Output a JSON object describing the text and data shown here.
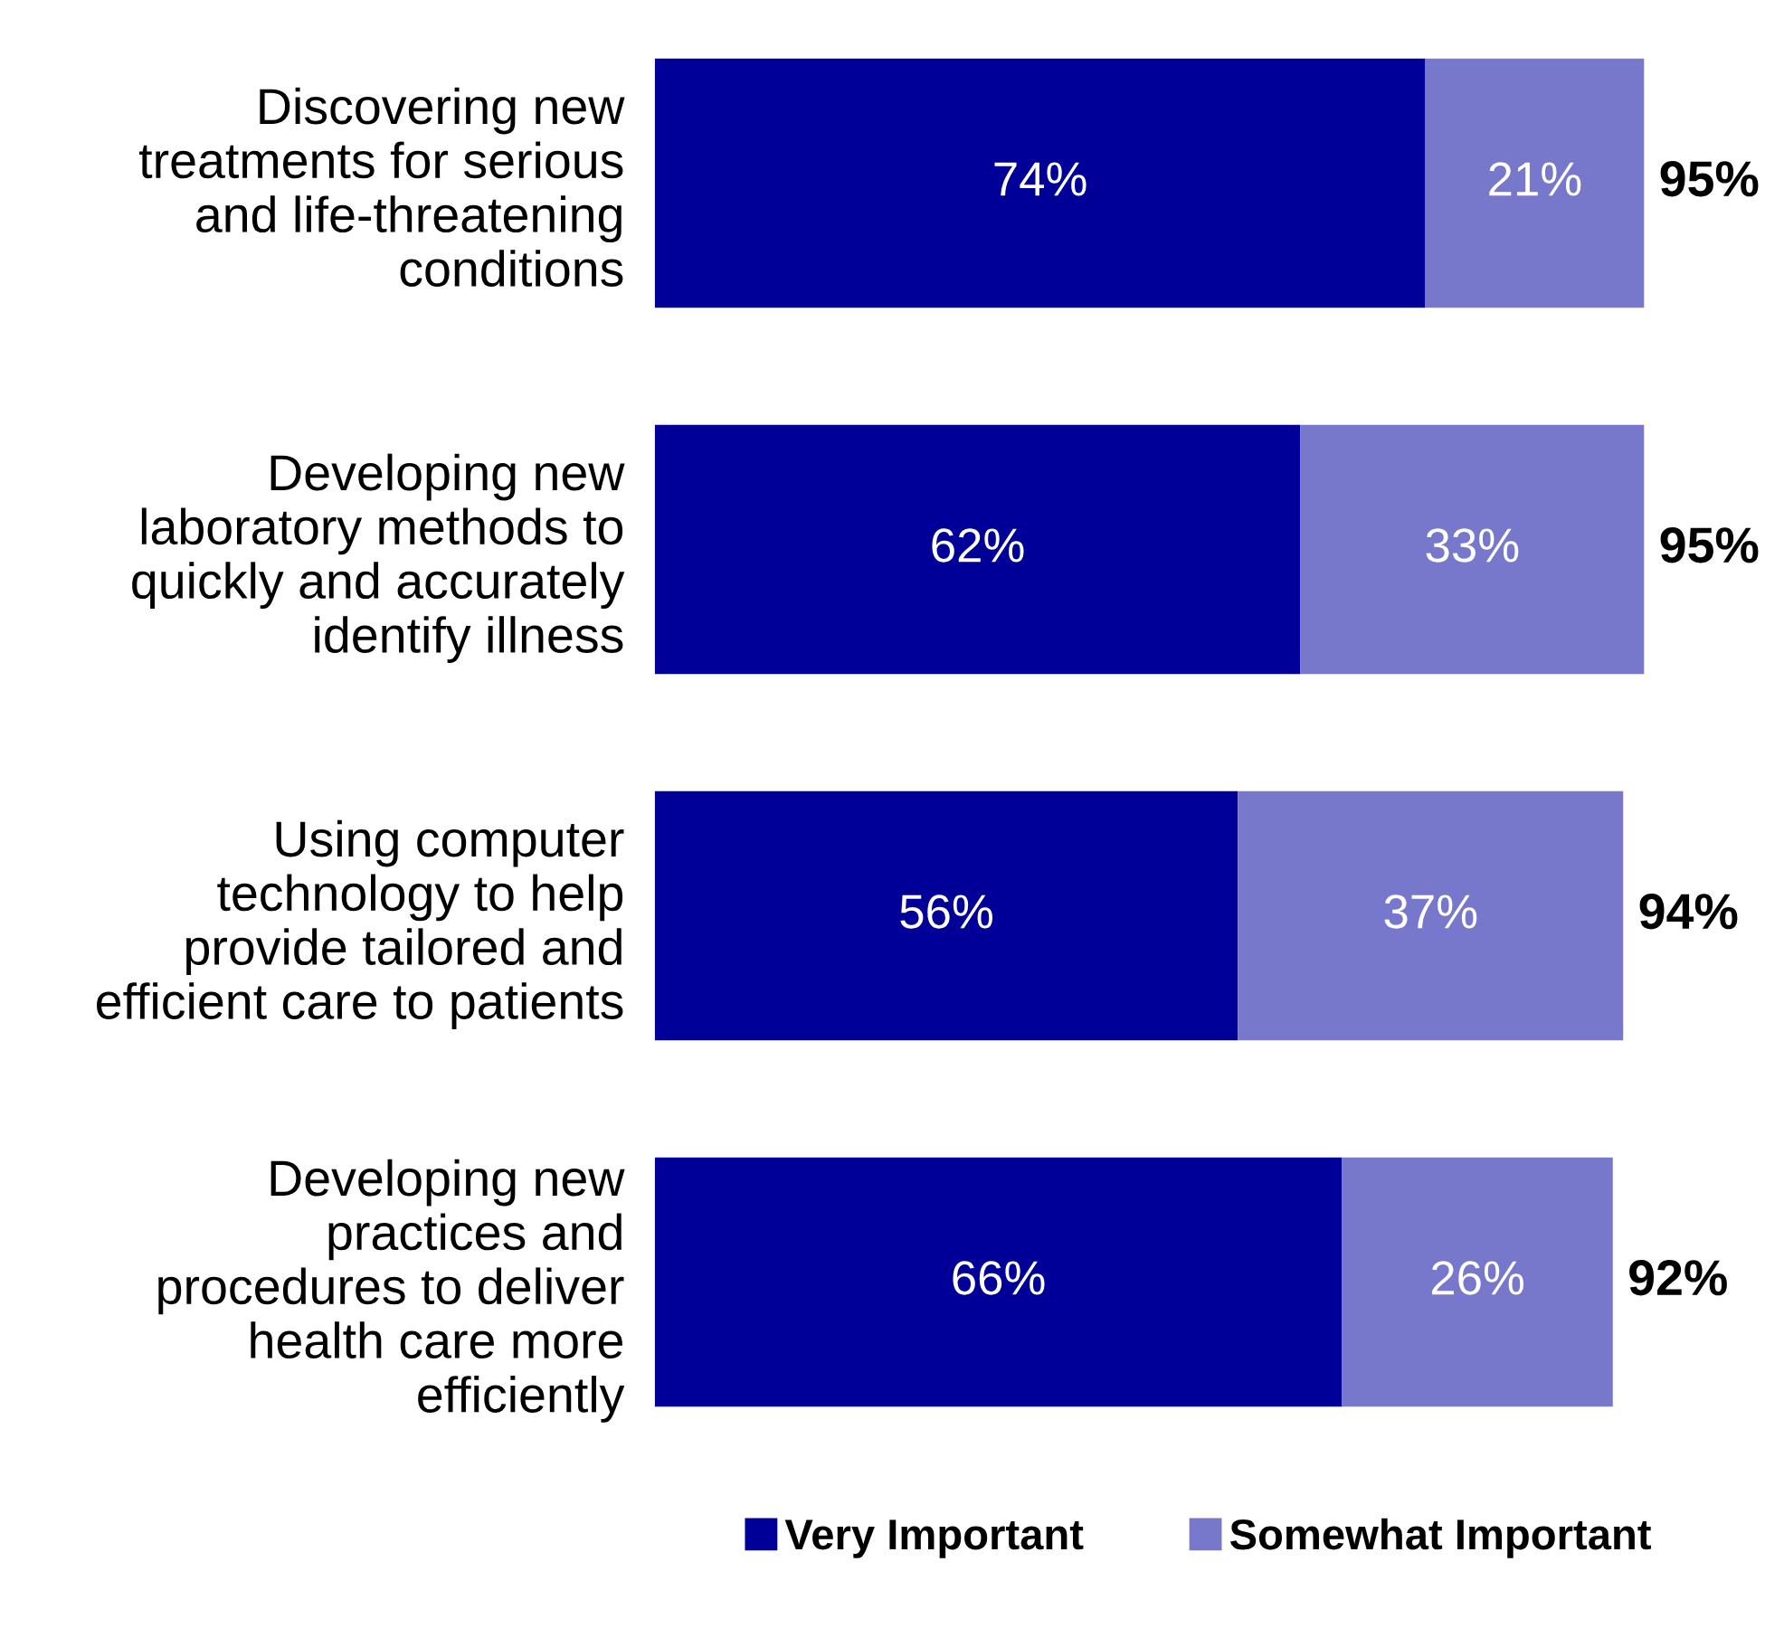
{
  "chart_data": {
    "type": "bar",
    "orientation": "horizontal",
    "stacked": true,
    "categories": [
      "Discovering new\ntreatments for serious\nand life-threatening\nconditions",
      "Developing new\nlaboratory methods to\nquickly and accurately\nidentify illness",
      "Using computer\ntechnology to help\nprovide tailored and\nefficient care to patients",
      "Developing new\npractices and\nprocedures to deliver\nhealth care more\nefficiently"
    ],
    "series": [
      {
        "name": "Very Important",
        "color": "#000099",
        "values": [
          74,
          62,
          56,
          66
        ],
        "value_labels": [
          "74%",
          "62%",
          "56%",
          "66%"
        ]
      },
      {
        "name": "Somewhat Important",
        "color": "#7777cc",
        "values": [
          21,
          33,
          37,
          26
        ],
        "value_labels": [
          "21%",
          "33%",
          "37%",
          "26%"
        ]
      }
    ],
    "totals": [
      "95%",
      "95%",
      "94%",
      "92%"
    ],
    "legend": "bottom",
    "grid": false
  }
}
